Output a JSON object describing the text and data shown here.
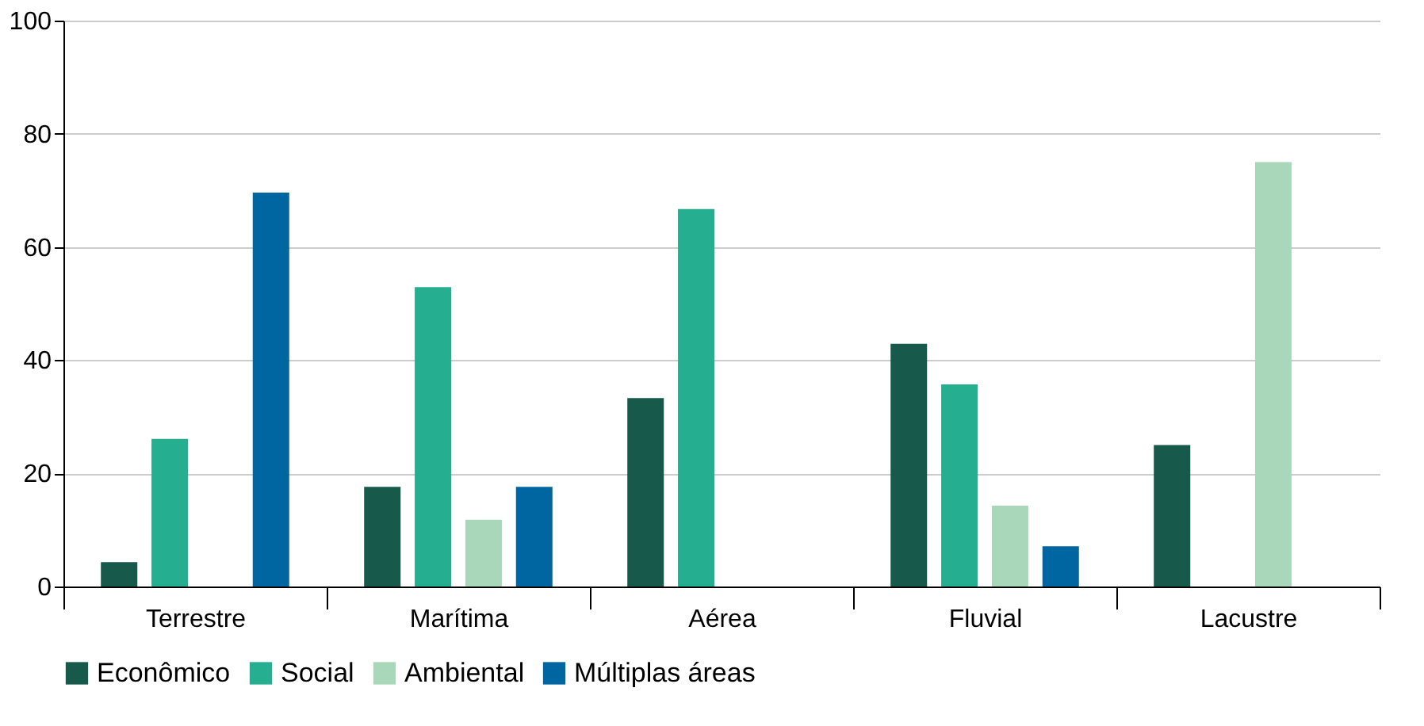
{
  "chart_data": {
    "type": "bar",
    "categories": [
      "Terrestre",
      "Marítima",
      "Aérea",
      "Fluvial",
      "Lacustre"
    ],
    "series": [
      {
        "name": "Econômico",
        "color": "#17594a",
        "values": [
          4.3,
          17.6,
          33.3,
          42.9,
          25
        ]
      },
      {
        "name": "Social",
        "color": "#26ae90",
        "values": [
          26.1,
          52.9,
          66.7,
          35.7,
          null
        ]
      },
      {
        "name": "Ambiental",
        "color": "#a8d8b9",
        "values": [
          null,
          11.8,
          null,
          14.3,
          75
        ]
      },
      {
        "name": "Múltiplas áreas",
        "color": "#0066a1",
        "values": [
          69.6,
          17.6,
          null,
          7.1,
          null
        ]
      }
    ],
    "ylim": [
      0,
      100
    ],
    "yticks": [
      0,
      20,
      40,
      60,
      80,
      100
    ],
    "grid": "y",
    "legend": "bottom"
  }
}
